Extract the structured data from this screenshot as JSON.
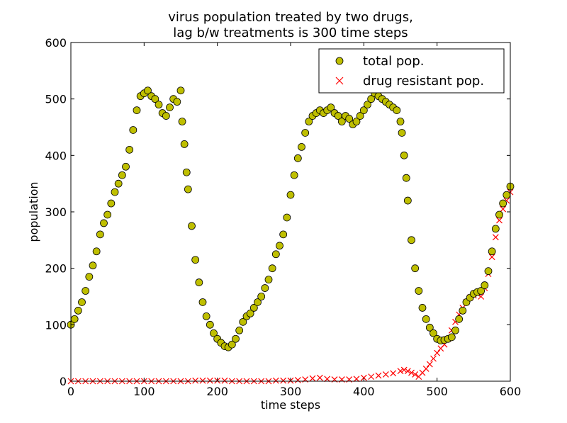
{
  "chart_data": {
    "type": "scatter",
    "title": "virus population treated by two drugs,",
    "subtitle": "lag b/w treatments is 300 time steps",
    "xlabel": "time steps",
    "ylabel": "population",
    "xlim": [
      0,
      600
    ],
    "ylim": [
      0,
      600
    ],
    "xticks": [
      "0",
      "100",
      "200",
      "300",
      "400",
      "500",
      "600"
    ],
    "yticks": [
      "0",
      "100",
      "200",
      "300",
      "400",
      "500",
      "600"
    ],
    "grid": false,
    "legend_position": "top-right",
    "series": [
      {
        "name": "total pop.",
        "marker": "circle",
        "color": "#bfbf00",
        "x": [
          0,
          5,
          10,
          15,
          20,
          25,
          30,
          35,
          40,
          45,
          50,
          55,
          60,
          65,
          70,
          75,
          80,
          85,
          90,
          95,
          100,
          105,
          110,
          115,
          120,
          125,
          130,
          135,
          140,
          145,
          150,
          152,
          155,
          158,
          160,
          165,
          170,
          175,
          180,
          185,
          190,
          195,
          200,
          205,
          210,
          215,
          220,
          225,
          230,
          235,
          240,
          245,
          250,
          255,
          260,
          265,
          270,
          275,
          280,
          285,
          290,
          295,
          300,
          305,
          310,
          315,
          320,
          325,
          330,
          335,
          340,
          345,
          350,
          355,
          360,
          365,
          370,
          375,
          380,
          385,
          390,
          395,
          400,
          405,
          410,
          415,
          420,
          425,
          430,
          435,
          440,
          445,
          450,
          452,
          455,
          458,
          460,
          465,
          470,
          475,
          480,
          485,
          490,
          495,
          500,
          505,
          510,
          515,
          520,
          525,
          530,
          535,
          540,
          545,
          550,
          555,
          560,
          565,
          570,
          575,
          580,
          585,
          590,
          595,
          600
        ],
        "y": [
          100,
          110,
          125,
          140,
          160,
          185,
          205,
          230,
          260,
          280,
          295,
          315,
          335,
          350,
          365,
          380,
          410,
          445,
          480,
          505,
          510,
          515,
          505,
          500,
          490,
          475,
          470,
          485,
          500,
          495,
          515,
          460,
          420,
          370,
          340,
          275,
          215,
          175,
          140,
          115,
          100,
          85,
          75,
          68,
          62,
          60,
          65,
          75,
          90,
          105,
          115,
          120,
          130,
          140,
          150,
          165,
          180,
          200,
          225,
          240,
          260,
          290,
          330,
          365,
          395,
          415,
          440,
          460,
          470,
          475,
          480,
          475,
          480,
          485,
          475,
          470,
          460,
          470,
          465,
          455,
          460,
          470,
          480,
          490,
          500,
          510,
          505,
          500,
          495,
          490,
          485,
          480,
          460,
          440,
          400,
          360,
          320,
          250,
          200,
          160,
          130,
          110,
          95,
          85,
          75,
          72,
          73,
          75,
          78,
          90,
          110,
          125,
          140,
          148,
          155,
          158,
          160,
          170,
          195,
          230,
          270,
          295,
          315,
          330,
          345
        ]
      },
      {
        "name": "drug resistant pop.",
        "marker": "x",
        "color": "#ff0000",
        "x": [
          0,
          10,
          20,
          30,
          40,
          50,
          60,
          70,
          80,
          90,
          100,
          110,
          120,
          130,
          140,
          150,
          160,
          170,
          180,
          190,
          200,
          210,
          220,
          230,
          240,
          250,
          260,
          270,
          280,
          290,
          300,
          310,
          320,
          330,
          340,
          350,
          360,
          370,
          380,
          390,
          400,
          410,
          420,
          430,
          440,
          450,
          455,
          460,
          465,
          470,
          475,
          480,
          485,
          490,
          495,
          500,
          505,
          510,
          515,
          520,
          525,
          530,
          535,
          540,
          545,
          550,
          555,
          560,
          565,
          570,
          575,
          580,
          585,
          590,
          595,
          600
        ],
        "y": [
          0,
          0,
          0,
          0,
          0,
          0,
          0,
          0,
          0,
          0,
          0,
          0,
          0,
          0,
          0,
          0,
          0,
          1,
          1,
          1,
          1,
          1,
          0,
          0,
          0,
          0,
          0,
          0,
          1,
          1,
          1,
          2,
          3,
          5,
          6,
          4,
          3,
          3,
          3,
          4,
          6,
          8,
          10,
          12,
          14,
          18,
          20,
          18,
          15,
          12,
          8,
          15,
          22,
          30,
          40,
          50,
          58,
          65,
          75,
          90,
          105,
          118,
          130,
          140,
          148,
          152,
          155,
          150,
          165,
          190,
          220,
          255,
          285,
          305,
          320,
          335
        ]
      }
    ]
  }
}
